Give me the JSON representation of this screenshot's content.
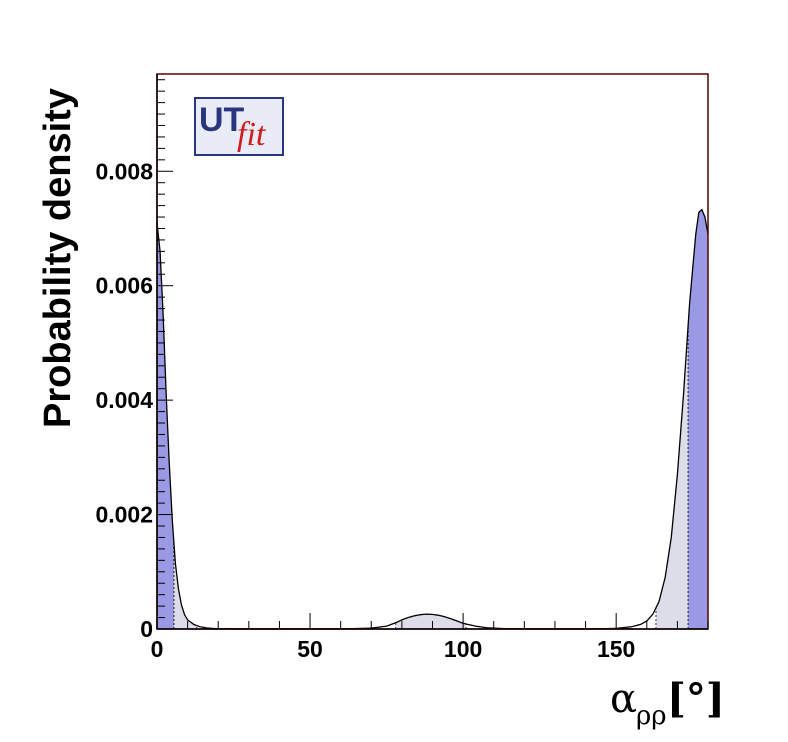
{
  "chart_data": {
    "type": "area",
    "title": "",
    "xlabel": "α",
    "xlabel_sub": "ρρ",
    "xlabel_unit": "[°]",
    "ylabel": "Probability density",
    "xlim": [
      0,
      180
    ],
    "ylim": [
      0,
      0.0097
    ],
    "grid": false,
    "x_ticks": [
      {
        "value": 0,
        "label": "0"
      },
      {
        "value": 50,
        "label": "50"
      },
      {
        "value": 100,
        "label": "100"
      },
      {
        "value": 150,
        "label": "150"
      }
    ],
    "y_ticks": [
      {
        "value": 0,
        "label": "0"
      },
      {
        "value": 0.002,
        "label": "0.002"
      },
      {
        "value": 0.004,
        "label": "0.004"
      },
      {
        "value": 0.006,
        "label": "0.006"
      },
      {
        "value": 0.008,
        "label": "0.008"
      }
    ],
    "curve": {
      "x": [
        0,
        1,
        2,
        3,
        4,
        5,
        6,
        7,
        8,
        9,
        10,
        12,
        14,
        16,
        18,
        20,
        25,
        30,
        40,
        60,
        70,
        75,
        78,
        80,
        82,
        84,
        86,
        88,
        90,
        92,
        94,
        96,
        98,
        100,
        104,
        108,
        115,
        125,
        140,
        150,
        155,
        158,
        160,
        162,
        164,
        166,
        168,
        170,
        172,
        174,
        176,
        177,
        178,
        179,
        180
      ],
      "y": [
        0.0071,
        0.0066,
        0.0055,
        0.0041,
        0.0029,
        0.0019,
        0.00115,
        0.0007,
        0.00042,
        0.00025,
        0.00016,
        8e-05,
        4e-05,
        2e-05,
        1e-05,
        5e-06,
        1e-06,
        0.0,
        0.0,
        0.0,
        1.5e-05,
        5e-05,
        0.00011,
        0.00016,
        0.0002,
        0.00023,
        0.00025,
        0.00026,
        0.000255,
        0.00024,
        0.000215,
        0.00018,
        0.00014,
        0.0001,
        5e-05,
        2e-05,
        3e-06,
        0.0,
        0.0,
        1e-05,
        4e-05,
        8e-05,
        0.00014,
        0.00026,
        0.00048,
        0.0009,
        0.0016,
        0.0027,
        0.0041,
        0.0057,
        0.0069,
        0.00728,
        0.00733,
        0.0072,
        0.0069
      ]
    },
    "regions": {
      "dark_68": [
        [
          0,
          5.5
        ],
        [
          173.5,
          180
        ]
      ],
      "light_95": [
        [
          5.5,
          13
        ],
        [
          78,
          101
        ],
        [
          163,
          173.5
        ]
      ]
    },
    "colors": {
      "dark_fill": "#9a9ae4",
      "light_fill": "#dcdde8",
      "curve": "#000000",
      "frame": "#5a0000",
      "baseline_marks": "#cc0000"
    },
    "logo": {
      "part1": "UT",
      "part2": "fit"
    }
  }
}
